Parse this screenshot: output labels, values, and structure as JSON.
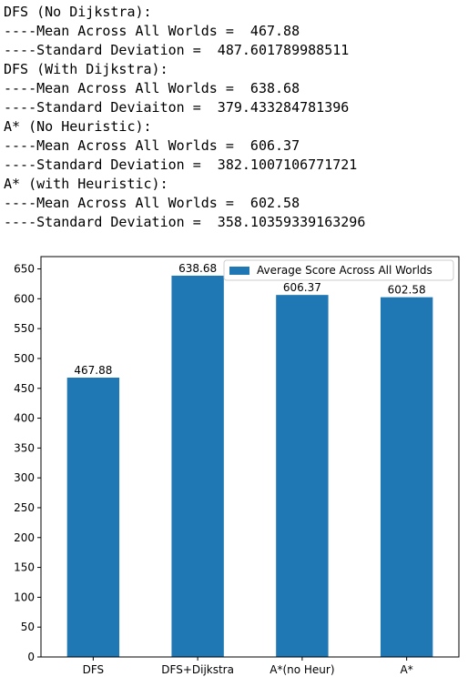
{
  "output_lines": [
    "DFS (No Dijkstra):",
    "----Mean Across All Worlds =  467.88",
    "----Standard Deviation =  487.601789988511",
    "DFS (With Dijkstra):",
    "----Mean Across All Worlds =  638.68",
    "----Standard Deviaiton =  379.433284781396",
    "A* (No Heuristic):",
    "----Mean Across All Worlds =  606.37",
    "----Standard Deviation =  382.1007106771721",
    "A* (with Heuristic):",
    "----Mean Across All Worlds =  602.58",
    "----Standard Deviation =  358.10359339163296"
  ],
  "chart_data": {
    "type": "bar",
    "categories": [
      "DFS",
      "DFS+Dijkstra",
      "A*(no Heur)",
      "A*"
    ],
    "series": [
      {
        "name": "Average Score Across All Worlds",
        "values": [
          467.88,
          638.68,
          606.37,
          602.58
        ],
        "color": "#1f77b4"
      }
    ],
    "data_labels": [
      "467.88",
      "638.68",
      "606.37",
      "602.58"
    ],
    "yticks": [
      0,
      50,
      100,
      150,
      200,
      250,
      300,
      350,
      400,
      450,
      500,
      550,
      600,
      650
    ],
    "ylim": [
      0,
      670.61
    ],
    "grid": false,
    "legend_position": "top-right",
    "title": "",
    "xlabel": "",
    "ylabel": ""
  }
}
